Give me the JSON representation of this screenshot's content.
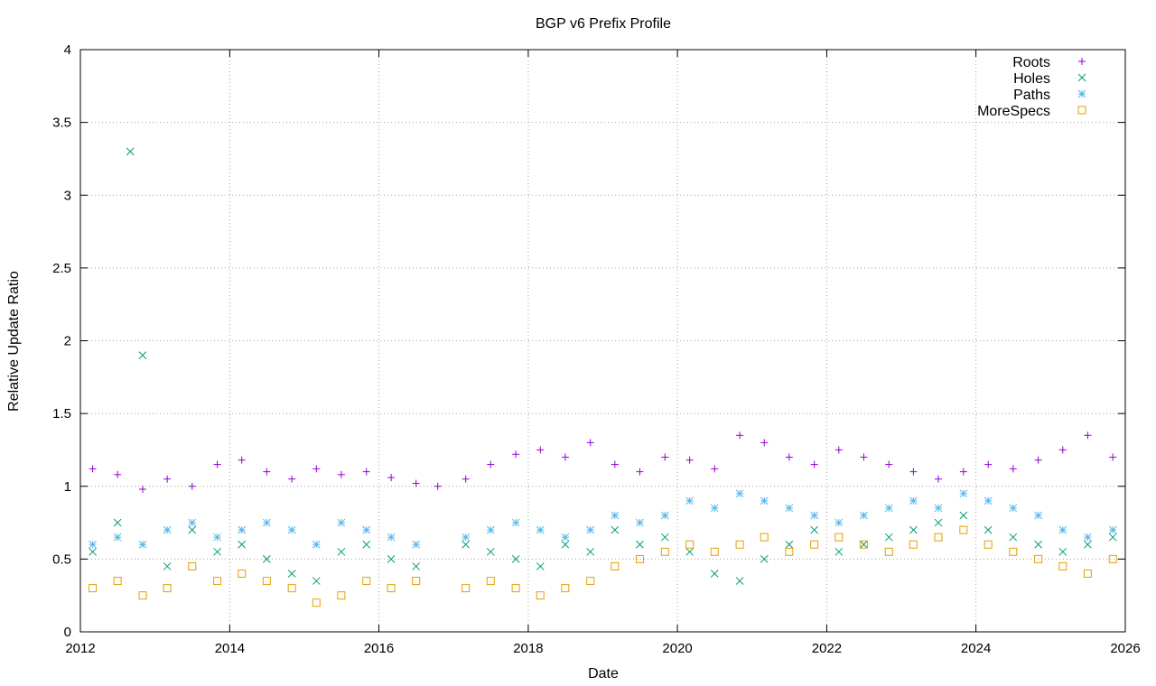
{
  "chart_data": {
    "type": "scatter",
    "title": "BGP v6 Prefix Profile",
    "xlabel": "Date",
    "ylabel": "Relative Update Ratio",
    "xlim": [
      "2012-01-01",
      "2026-01-01"
    ],
    "ylim": [
      0,
      4
    ],
    "x_ticks": [
      "2012",
      "2014",
      "2016",
      "2018",
      "2020",
      "2022",
      "2024",
      "2026"
    ],
    "y_ticks": [
      "0",
      "0.5",
      "1",
      "1.5",
      "2",
      "2.5",
      "3",
      "3.5",
      "4"
    ],
    "grid": true,
    "legend_position": "top-right",
    "series": [
      {
        "name": "Roots",
        "marker": "plus",
        "color": "#9400d3",
        "points": [
          [
            "2012-03-01",
            1.12
          ],
          [
            "2012-07-01",
            1.08
          ],
          [
            "2012-11-01",
            0.98
          ],
          [
            "2013-03-01",
            1.05
          ],
          [
            "2013-07-01",
            1.0
          ],
          [
            "2013-11-01",
            1.15
          ],
          [
            "2014-03-01",
            1.18
          ],
          [
            "2014-07-01",
            1.1
          ],
          [
            "2014-11-01",
            1.05
          ],
          [
            "2015-03-01",
            1.12
          ],
          [
            "2015-07-01",
            1.08
          ],
          [
            "2015-11-01",
            1.1
          ],
          [
            "2016-03-01",
            1.06
          ],
          [
            "2016-07-01",
            1.02
          ],
          [
            "2016-10-15",
            1.0
          ],
          [
            "2017-03-01",
            1.05
          ],
          [
            "2017-07-01",
            1.15
          ],
          [
            "2017-11-01",
            1.22
          ],
          [
            "2018-03-01",
            1.25
          ],
          [
            "2018-07-01",
            1.2
          ],
          [
            "2018-11-01",
            1.3
          ],
          [
            "2019-03-01",
            1.15
          ],
          [
            "2019-07-01",
            1.1
          ],
          [
            "2019-11-01",
            1.2
          ],
          [
            "2020-03-01",
            1.18
          ],
          [
            "2020-07-01",
            1.12
          ],
          [
            "2020-11-01",
            1.35
          ],
          [
            "2021-03-01",
            1.3
          ],
          [
            "2021-07-01",
            1.2
          ],
          [
            "2021-11-01",
            1.15
          ],
          [
            "2022-03-01",
            1.25
          ],
          [
            "2022-07-01",
            1.2
          ],
          [
            "2022-11-01",
            1.15
          ],
          [
            "2023-03-01",
            1.1
          ],
          [
            "2023-07-01",
            1.05
          ],
          [
            "2023-11-01",
            1.1
          ],
          [
            "2024-03-01",
            1.15
          ],
          [
            "2024-07-01",
            1.12
          ],
          [
            "2024-11-01",
            1.18
          ],
          [
            "2025-03-01",
            1.25
          ],
          [
            "2025-07-01",
            1.35
          ],
          [
            "2025-11-01",
            1.2
          ]
        ]
      },
      {
        "name": "Holes",
        "marker": "cross",
        "color": "#009e73",
        "points": [
          [
            "2012-03-01",
            0.55
          ],
          [
            "2012-07-01",
            0.75
          ],
          [
            "2012-09-01",
            3.3
          ],
          [
            "2012-11-01",
            1.9
          ],
          [
            "2013-03-01",
            0.45
          ],
          [
            "2013-07-01",
            0.7
          ],
          [
            "2013-11-01",
            0.55
          ],
          [
            "2014-03-01",
            0.6
          ],
          [
            "2014-07-01",
            0.5
          ],
          [
            "2014-11-01",
            0.4
          ],
          [
            "2015-03-01",
            0.35
          ],
          [
            "2015-07-01",
            0.55
          ],
          [
            "2015-11-01",
            0.6
          ],
          [
            "2016-03-01",
            0.5
          ],
          [
            "2016-07-01",
            0.45
          ],
          [
            "2017-03-01",
            0.6
          ],
          [
            "2017-07-01",
            0.55
          ],
          [
            "2017-11-01",
            0.5
          ],
          [
            "2018-03-01",
            0.45
          ],
          [
            "2018-07-01",
            0.6
          ],
          [
            "2018-11-01",
            0.55
          ],
          [
            "2019-03-01",
            0.7
          ],
          [
            "2019-07-01",
            0.6
          ],
          [
            "2019-11-01",
            0.65
          ],
          [
            "2020-03-01",
            0.55
          ],
          [
            "2020-07-01",
            0.4
          ],
          [
            "2020-11-01",
            0.35
          ],
          [
            "2021-03-01",
            0.5
          ],
          [
            "2021-07-01",
            0.6
          ],
          [
            "2021-11-01",
            0.7
          ],
          [
            "2022-03-01",
            0.55
          ],
          [
            "2022-07-01",
            0.6
          ],
          [
            "2022-11-01",
            0.65
          ],
          [
            "2023-03-01",
            0.7
          ],
          [
            "2023-07-01",
            0.75
          ],
          [
            "2023-11-01",
            0.8
          ],
          [
            "2024-03-01",
            0.7
          ],
          [
            "2024-07-01",
            0.65
          ],
          [
            "2024-11-01",
            0.6
          ],
          [
            "2025-03-01",
            0.55
          ],
          [
            "2025-07-01",
            0.6
          ],
          [
            "2025-11-01",
            0.65
          ]
        ]
      },
      {
        "name": "Paths",
        "marker": "star",
        "color": "#56b4e9",
        "points": [
          [
            "2012-03-01",
            0.6
          ],
          [
            "2012-07-01",
            0.65
          ],
          [
            "2012-11-01",
            0.6
          ],
          [
            "2013-03-01",
            0.7
          ],
          [
            "2013-07-01",
            0.75
          ],
          [
            "2013-11-01",
            0.65
          ],
          [
            "2014-03-01",
            0.7
          ],
          [
            "2014-07-01",
            0.75
          ],
          [
            "2014-11-01",
            0.7
          ],
          [
            "2015-03-01",
            0.6
          ],
          [
            "2015-07-01",
            0.75
          ],
          [
            "2015-11-01",
            0.7
          ],
          [
            "2016-03-01",
            0.65
          ],
          [
            "2016-07-01",
            0.6
          ],
          [
            "2017-03-01",
            0.65
          ],
          [
            "2017-07-01",
            0.7
          ],
          [
            "2017-11-01",
            0.75
          ],
          [
            "2018-03-01",
            0.7
          ],
          [
            "2018-07-01",
            0.65
          ],
          [
            "2018-11-01",
            0.7
          ],
          [
            "2019-03-01",
            0.8
          ],
          [
            "2019-07-01",
            0.75
          ],
          [
            "2019-11-01",
            0.8
          ],
          [
            "2020-03-01",
            0.9
          ],
          [
            "2020-07-01",
            0.85
          ],
          [
            "2020-11-01",
            0.95
          ],
          [
            "2021-03-01",
            0.9
          ],
          [
            "2021-07-01",
            0.85
          ],
          [
            "2021-11-01",
            0.8
          ],
          [
            "2022-03-01",
            0.75
          ],
          [
            "2022-07-01",
            0.8
          ],
          [
            "2022-11-01",
            0.85
          ],
          [
            "2023-03-01",
            0.9
          ],
          [
            "2023-07-01",
            0.85
          ],
          [
            "2023-11-01",
            0.95
          ],
          [
            "2024-03-01",
            0.9
          ],
          [
            "2024-07-01",
            0.85
          ],
          [
            "2024-11-01",
            0.8
          ],
          [
            "2025-03-01",
            0.7
          ],
          [
            "2025-07-01",
            0.65
          ],
          [
            "2025-11-01",
            0.7
          ]
        ]
      },
      {
        "name": "MoreSpecs",
        "marker": "square",
        "color": "#e69f00",
        "points": [
          [
            "2012-03-01",
            0.3
          ],
          [
            "2012-07-01",
            0.35
          ],
          [
            "2012-11-01",
            0.25
          ],
          [
            "2013-03-01",
            0.3
          ],
          [
            "2013-07-01",
            0.45
          ],
          [
            "2013-11-01",
            0.35
          ],
          [
            "2014-03-01",
            0.4
          ],
          [
            "2014-07-01",
            0.35
          ],
          [
            "2014-11-01",
            0.3
          ],
          [
            "2015-03-01",
            0.2
          ],
          [
            "2015-07-01",
            0.25
          ],
          [
            "2015-11-01",
            0.35
          ],
          [
            "2016-03-01",
            0.3
          ],
          [
            "2016-07-01",
            0.35
          ],
          [
            "2017-03-01",
            0.3
          ],
          [
            "2017-07-01",
            0.35
          ],
          [
            "2017-11-01",
            0.3
          ],
          [
            "2018-03-01",
            0.25
          ],
          [
            "2018-07-01",
            0.3
          ],
          [
            "2018-11-01",
            0.35
          ],
          [
            "2019-03-01",
            0.45
          ],
          [
            "2019-07-01",
            0.5
          ],
          [
            "2019-11-01",
            0.55
          ],
          [
            "2020-03-01",
            0.6
          ],
          [
            "2020-07-01",
            0.55
          ],
          [
            "2020-11-01",
            0.6
          ],
          [
            "2021-03-01",
            0.65
          ],
          [
            "2021-07-01",
            0.55
          ],
          [
            "2021-11-01",
            0.6
          ],
          [
            "2022-03-01",
            0.65
          ],
          [
            "2022-07-01",
            0.6
          ],
          [
            "2022-11-01",
            0.55
          ],
          [
            "2023-03-01",
            0.6
          ],
          [
            "2023-07-01",
            0.65
          ],
          [
            "2023-11-01",
            0.7
          ],
          [
            "2024-03-01",
            0.6
          ],
          [
            "2024-07-01",
            0.55
          ],
          [
            "2024-11-01",
            0.5
          ],
          [
            "2025-03-01",
            0.45
          ],
          [
            "2025-07-01",
            0.4
          ],
          [
            "2025-11-01",
            0.5
          ]
        ]
      }
    ]
  }
}
